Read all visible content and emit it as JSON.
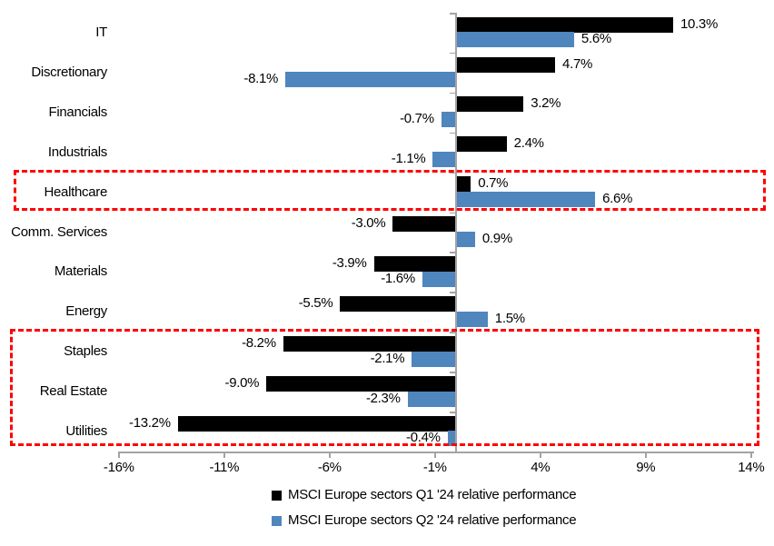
{
  "chart_data": {
    "type": "bar",
    "orientation": "horizontal",
    "title": "",
    "categories": [
      "IT",
      "Discretionary",
      "Financials",
      "Industrials",
      "Healthcare",
      "Comm. Services",
      "Materials",
      "Energy",
      "Staples",
      "Real Estate",
      "Utilities"
    ],
    "series": [
      {
        "name": "MSCI Europe sectors Q1 '24 relative performance",
        "color": "#000000",
        "values": [
          10.3,
          4.7,
          3.2,
          2.4,
          0.7,
          -3.0,
          -3.9,
          -5.5,
          -8.2,
          -9.0,
          -13.2
        ]
      },
      {
        "name": "MSCI Europe sectors Q2 '24 relative performance",
        "color": "#4f86be",
        "values": [
          5.6,
          -8.1,
          -0.7,
          -1.1,
          6.6,
          0.9,
          -1.6,
          1.5,
          -2.1,
          -2.3,
          -0.4
        ]
      }
    ],
    "value_labels": {
      "q1": [
        "10.3%",
        "4.7%",
        "3.2%",
        "2.4%",
        "0.7%",
        "-3.0%",
        "-3.9%",
        "-5.5%",
        "-8.2%",
        "-9.0%",
        "-13.2%"
      ],
      "q2": [
        "5.6%",
        "-8.1%",
        "-0.7%",
        "-1.1%",
        "6.6%",
        "0.9%",
        "-1.6%",
        "1.5%",
        "-2.1%",
        "-2.3%",
        "-0.4%"
      ]
    },
    "x_axis": {
      "min": -16,
      "max": 14,
      "tick_values": [
        -16,
        -11,
        -6,
        -1,
        4,
        9,
        14
      ],
      "tick_labels": [
        "-16%",
        "-11%",
        "-6%",
        "-1%",
        "4%",
        "9%",
        "14%"
      ],
      "unit": "%"
    },
    "gridlines": false,
    "legend_position": "bottom",
    "highlights": [
      {
        "sectors": [
          "Healthcare"
        ],
        "style": "red-dashed-box",
        "color": "#fe0000"
      },
      {
        "sectors": [
          "Staples",
          "Real Estate",
          "Utilities"
        ],
        "style": "red-dashed-box",
        "color": "#fe0000"
      }
    ]
  }
}
